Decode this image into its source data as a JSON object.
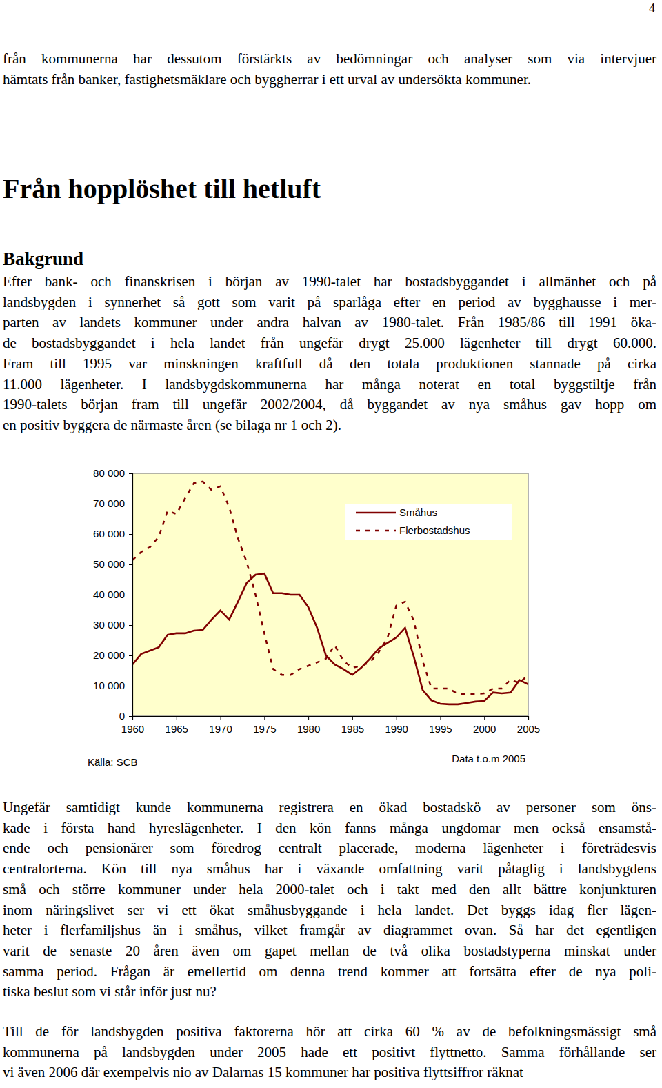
{
  "page_number": "4",
  "intro_lines": [
    "från kommunerna har dessutom förstärkts av bedömningar och analyser som via intervjuer",
    "hämtats från banker, fastighetsmäklare och byggherrar i ett urval av undersökta kommuner."
  ],
  "heading": "Från hopplöshet till hetluft",
  "section_heading": "Bakgrund",
  "paragraphs": [
    [
      "Efter bank- och finanskrisen i början av 1990-talet har bostadsbyggandet i allmänhet och på",
      "landsbygden i synnerhet så gott som varit på sparlåga efter en period av bygghausse i mer-",
      "parten av landets kommuner under andra halvan av 1980-talet. Från 1985/86 till 1991 öka-",
      "de bostadsbyggandet i hela landet från ungefär drygt 25.000 lägenheter till drygt 60.000.",
      "Fram till 1995 var minskningen kraftfull då den totala produktionen stannade på cirka",
      "11.000 lägenheter. I landsbygdskommunerna har många noterat en total byggstiltje från",
      "1990-talets början fram till ungefär 2002/2004, då byggandet av nya småhus gav hopp om",
      "en positiv byggera de närmaste åren (se bilaga nr 1 och 2)."
    ],
    [
      "Ungefär samtidigt kunde kommunerna registrera en ökad bostadskö av personer som öns-",
      "kade i första hand hyreslägenheter. I den kön fanns många ungdomar men också ensamstå-",
      "ende och pensionärer som föredrog centralt placerade, moderna lägenheter i företrädesvis",
      "centralorterna. Kön till nya småhus har i växande omfattning varit påtaglig i landsbygdens",
      "små och större kommuner under hela 2000-talet och i takt med den allt bättre konjunkturen",
      "inom näringslivet ser vi ett ökat småhusbyggande i hela landet. Det byggs idag fler lägen-",
      "heter i flerfamiljshus än i småhus, vilket framgår av diagrammet ovan. Så har det egentligen",
      "varit de senaste 20 åren även om gapet mellan de två olika bostadstyperna minskat under",
      "samma period. Frågan är emellertid om denna trend kommer att fortsätta efter de nya poli-",
      "tiska beslut som vi står inför just nu?"
    ],
    [
      "Till de för landsbygden positiva faktorerna hör att cirka 60 % av de befolkningsmässigt små",
      "kommunerna på landsbygden under 2005 hade ett positivt flyttnetto. Samma förhållande ser",
      "vi även 2006 där exempelvis nio av Dalarnas 15 kommuner har positiva flyttsiffror räknat"
    ]
  ],
  "chart_data": {
    "type": "line",
    "annotations": [
      "Källa: SCB",
      "Data t.o.m 2005"
    ],
    "x": [
      1960,
      1961,
      1962,
      1963,
      1964,
      1965,
      1966,
      1967,
      1968,
      1969,
      1970,
      1971,
      1972,
      1973,
      1974,
      1975,
      1976,
      1977,
      1978,
      1979,
      1980,
      1981,
      1982,
      1983,
      1984,
      1985,
      1986,
      1987,
      1988,
      1989,
      1990,
      1991,
      1992,
      1993,
      1994,
      1995,
      1996,
      1997,
      1998,
      1999,
      2000,
      2001,
      2002,
      2003,
      2004,
      2005
    ],
    "series": [
      {
        "name": "Småhus",
        "color": "#800000",
        "line_style": "solid",
        "values": [
          17000,
          20500,
          21600,
          22700,
          26800,
          27300,
          27300,
          28200,
          28400,
          31800,
          34800,
          31800,
          37700,
          43900,
          46600,
          47000,
          40500,
          40500,
          40000,
          40000,
          35900,
          29100,
          20000,
          17000,
          15500,
          13600,
          15900,
          18900,
          22300,
          24100,
          25900,
          29100,
          19500,
          8600,
          5200,
          4100,
          3900,
          3900,
          4300,
          4800,
          5000,
          7800,
          7500,
          7800,
          11900,
          10500
        ]
      },
      {
        "name": "Flerbostadshus",
        "color": "#800000",
        "line_style": "dashed",
        "values": [
          51400,
          54100,
          55700,
          59100,
          67700,
          66600,
          71800,
          76800,
          77300,
          74500,
          75700,
          68900,
          58600,
          50700,
          40000,
          27300,
          15500,
          13600,
          13600,
          15500,
          16600,
          17700,
          18900,
          23400,
          18200,
          15900,
          16600,
          17700,
          21100,
          25700,
          36400,
          37700,
          31400,
          18200,
          9100,
          9100,
          9100,
          7300,
          7300,
          7300,
          7500,
          9100,
          9100,
          12000,
          10900,
          13600
        ]
      }
    ],
    "xlim": [
      1960,
      2005
    ],
    "xticks": [
      1960,
      1965,
      1970,
      1975,
      1980,
      1985,
      1990,
      1995,
      2000,
      2005
    ],
    "ylim": [
      0,
      80000
    ],
    "yticks": [
      0,
      {
        "value": 10000,
        "label": "10 000"
      },
      {
        "value": 20000,
        "label": "20 000"
      },
      {
        "value": 30000,
        "label": "30 000"
      },
      {
        "value": 40000,
        "label": "40 000"
      },
      {
        "value": 50000,
        "label": "50 000"
      },
      {
        "value": 60000,
        "label": "60 000"
      },
      {
        "value": 70000,
        "label": "70 000"
      },
      {
        "value": 80000,
        "label": "80 000"
      }
    ],
    "grid": false,
    "legend": "upper right"
  }
}
